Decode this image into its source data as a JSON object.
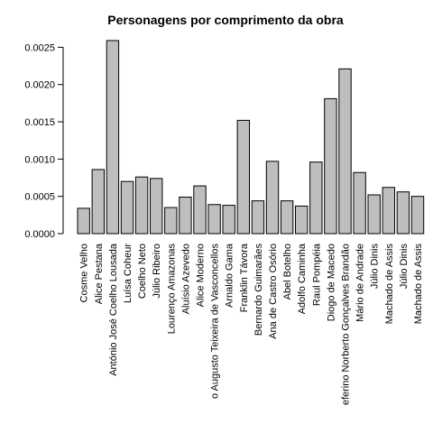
{
  "chart_data": {
    "type": "bar",
    "title": "Personagens por comprimento da obra",
    "xlabel": "",
    "ylabel": "",
    "ylim": [
      0,
      0.0026
    ],
    "yticks": [
      "0.0000",
      "0.0005",
      "0.0010",
      "0.0015",
      "0.0020",
      "0.0025"
    ],
    "ytick_values": [
      0,
      0.0005,
      0.001,
      0.0015,
      0.002,
      0.0025
    ],
    "bar_color": "#bebebe",
    "grid": false,
    "categories": [
      "Cosme Velho",
      "Alice Pestana",
      "António José Coelho Lousada",
      "Luísa Coheur",
      "Coelho Neto",
      "Júlio Ribeiro",
      "Lourenço Amazonas",
      "Aluísio Azevedo",
      "Alice Moderno",
      "o Augusto Teixeira de Vasconcellos",
      "Arnaldo Gama",
      "Franklin Távora",
      "Bernardo Guimarães",
      "Ana de Castro Osório",
      "Abel Botelho",
      "Adolfo Caminha",
      "Raul Pompéia",
      "Diogo de Macedo",
      "eferino Norberto Gonçalves Brandão",
      "Mário de Andrade",
      "Júlio Dinis",
      "Machado de Assis",
      "Júlio Dinis",
      "Machado de Assis"
    ],
    "values": [
      0.00034,
      0.00086,
      0.00259,
      0.0007,
      0.00076,
      0.00074,
      0.00035,
      0.00049,
      0.00064,
      0.00039,
      0.00038,
      0.00152,
      0.00044,
      0.00097,
      0.00044,
      0.00037,
      0.00096,
      0.00181,
      0.00221,
      0.00082,
      0.00052,
      0.00062,
      0.00056,
      0.0005
    ]
  }
}
